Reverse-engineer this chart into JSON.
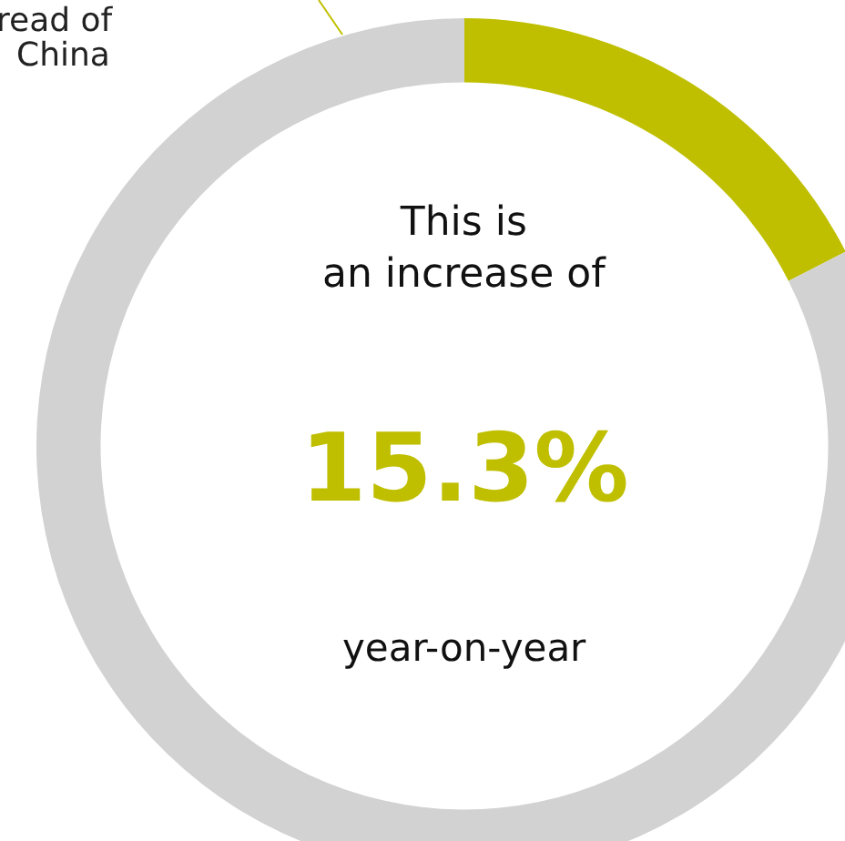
{
  "chart_data": {
    "type": "donut",
    "categories": [
      null,
      null
    ],
    "values": [
      17.5,
      82.5
    ],
    "colors": [
      "#bfbf00",
      "#d2d2d2"
    ],
    "annotations": [
      "read of",
      "China",
      "This is\nan increase of",
      "15.3%",
      "year-on-year"
    ],
    "legend": false
  }
}
